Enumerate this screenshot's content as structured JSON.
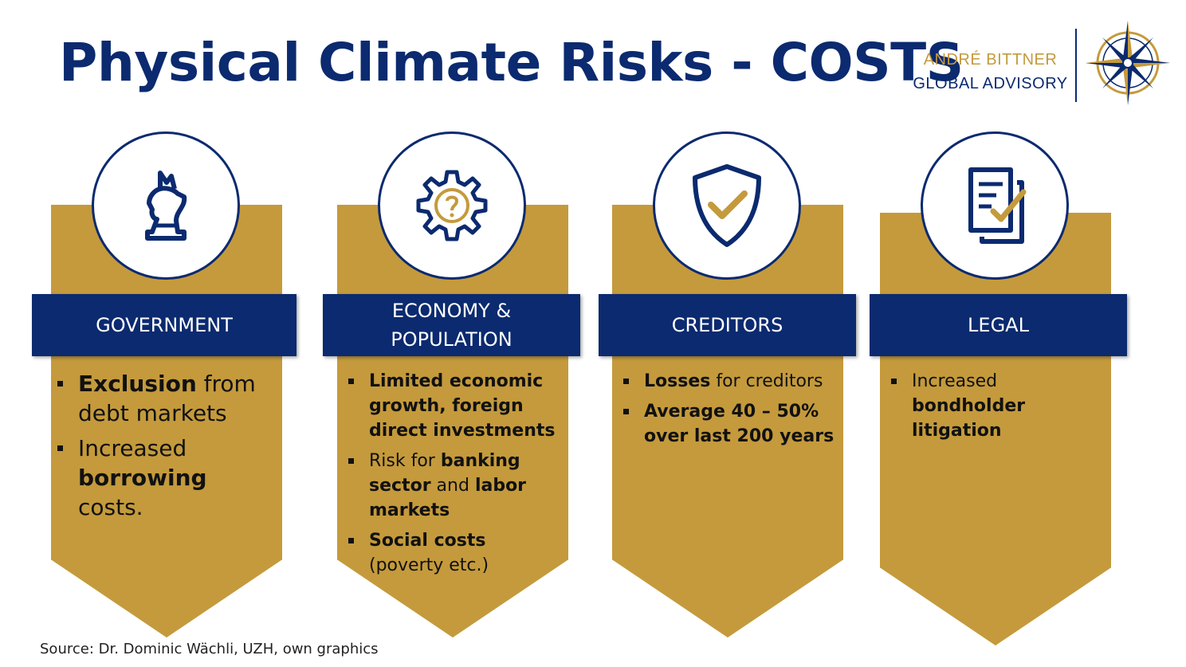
{
  "title": "Physical Climate Risks - COSTS",
  "brand": {
    "line1": "ANDRÉ BITTNER",
    "line2": "GLOBAL ADVISORY"
  },
  "colors": {
    "navy": "#0b2a6f",
    "gold": "#c49a3c"
  },
  "pillars": [
    {
      "icon": "chess-knight-icon",
      "label": "GOVERNMENT",
      "items": [
        {
          "bold": "Exclusion",
          "text": " from debt markets"
        },
        {
          "text": "Increased ",
          "bold": "borrowing",
          "text2": " costs."
        }
      ]
    },
    {
      "icon": "gear-question-icon",
      "label_line1": "ECONOMY &",
      "label_line2": "POPULATION",
      "items": [
        {
          "bold": "Limited economic growth, foreign direct investments"
        },
        {
          "text": "Risk for ",
          "bold": "banking sector",
          "text2": " and ",
          "bold2": "labor markets"
        },
        {
          "bold": "Social costs",
          "text": " (poverty etc.)"
        }
      ]
    },
    {
      "icon": "shield-check-icon",
      "label": "CREDITORS",
      "items": [
        {
          "bold": "Losses",
          "text": " for creditors"
        },
        {
          "bold": "Average 40 – 50% over last 200 years"
        }
      ]
    },
    {
      "icon": "document-check-icon",
      "label": "LEGAL",
      "items": [
        {
          "text": "Increased ",
          "bold": "bondholder litigation"
        }
      ]
    }
  ],
  "source": "Source: Dr. Dominic Wächli, UZH, own graphics"
}
